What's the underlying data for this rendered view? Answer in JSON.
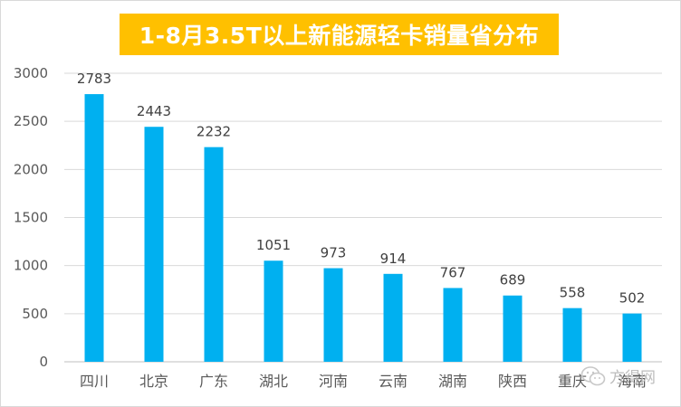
{
  "chart_data": {
    "type": "bar",
    "title": "1-8月3.5T以上新能源轻卡销量省分布",
    "categories": [
      "四川",
      "北京",
      "广东",
      "湖北",
      "河南",
      "云南",
      "湖南",
      "陕西",
      "重庆",
      "海南"
    ],
    "values": [
      2783,
      2443,
      2232,
      1051,
      973,
      914,
      767,
      689,
      558,
      502
    ],
    "ylim": [
      0,
      3000
    ],
    "yticks": [
      0,
      500,
      1000,
      1500,
      2000,
      2500,
      3000
    ],
    "grid": true,
    "data_labels": true,
    "xlabel": "",
    "ylabel": ""
  },
  "colors": {
    "bar": "#00b0f0",
    "title_bg": "#ffc000",
    "grid": "#d9d9d9",
    "text": "#595959"
  },
  "watermark": {
    "text": "方得网",
    "icon": "wechat-icon"
  }
}
